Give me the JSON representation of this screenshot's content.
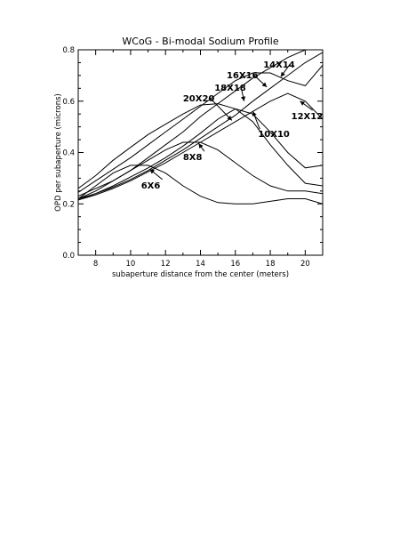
{
  "chart_data": {
    "type": "line",
    "title": "WCoG - Bi-modal Sodium Profile",
    "xlabel": "subaperture distance from the center (meters)",
    "ylabel": "OPD per subaperture (microns)",
    "xlim": [
      7,
      21
    ],
    "ylim": [
      0,
      0.8
    ],
    "x_ticks": [
      8,
      10,
      12,
      14,
      16,
      18,
      20
    ],
    "x_tick_labels": [
      "8",
      "10",
      "12",
      "14",
      "16",
      "18",
      "20"
    ],
    "y_ticks": [
      0,
      0.2,
      0.4,
      0.6,
      0.8
    ],
    "y_tick_labels": [
      "0.0",
      "0.2",
      "0.4",
      "0.6",
      "0.8"
    ],
    "grid": false,
    "series": [
      {
        "name": "6X6",
        "x": [
          7,
          8,
          9,
          10,
          11,
          12,
          13,
          14,
          15,
          16,
          17,
          18,
          19,
          20,
          21
        ],
        "y": [
          0.22,
          0.27,
          0.32,
          0.35,
          0.35,
          0.32,
          0.27,
          0.23,
          0.205,
          0.2,
          0.2,
          0.21,
          0.22,
          0.22,
          0.2
        ]
      },
      {
        "name": "8X8",
        "x": [
          7,
          8,
          9,
          10,
          11,
          12,
          13,
          14,
          15,
          16,
          17,
          18,
          19,
          20,
          21
        ],
        "y": [
          0.22,
          0.25,
          0.29,
          0.33,
          0.37,
          0.41,
          0.44,
          0.44,
          0.41,
          0.36,
          0.31,
          0.27,
          0.25,
          0.25,
          0.24
        ]
      },
      {
        "name": "10X10",
        "x": [
          7,
          8,
          9,
          10,
          11,
          12,
          13,
          14,
          15,
          16,
          17,
          18,
          19,
          20,
          21
        ],
        "y": [
          0.215,
          0.24,
          0.27,
          0.305,
          0.34,
          0.38,
          0.425,
          0.475,
          0.53,
          0.57,
          0.55,
          0.48,
          0.4,
          0.34,
          0.35
        ]
      },
      {
        "name": "12X12",
        "x": [
          7,
          8,
          9,
          10,
          11,
          12,
          13,
          14,
          15,
          16,
          17,
          18,
          19,
          20,
          21
        ],
        "y": [
          0.215,
          0.235,
          0.26,
          0.29,
          0.325,
          0.36,
          0.4,
          0.44,
          0.48,
          0.52,
          0.56,
          0.6,
          0.63,
          0.6,
          0.53
        ]
      },
      {
        "name": "14X14",
        "x": [
          7,
          8,
          9,
          10,
          11,
          12,
          13,
          14,
          15,
          16,
          17,
          18,
          19,
          20,
          21
        ],
        "y": [
          0.22,
          0.24,
          0.265,
          0.295,
          0.33,
          0.37,
          0.41,
          0.455,
          0.5,
          0.545,
          0.6,
          0.65,
          0.7,
          0.75,
          0.79
        ]
      },
      {
        "name": "16X16",
        "x": [
          7,
          8,
          9,
          10,
          11,
          12,
          13,
          14,
          15,
          16,
          17,
          18,
          19,
          20,
          21
        ],
        "y": [
          0.23,
          0.26,
          0.29,
          0.33,
          0.38,
          0.43,
          0.48,
          0.54,
          0.59,
          0.64,
          0.69,
          0.73,
          0.77,
          0.8,
          0.81
        ]
      },
      {
        "name": "18X18",
        "x": [
          7,
          8,
          9,
          10,
          11,
          12,
          13,
          14,
          15,
          16,
          17,
          18,
          19,
          20,
          21
        ],
        "y": [
          0.245,
          0.29,
          0.335,
          0.38,
          0.43,
          0.48,
          0.53,
          0.58,
          0.63,
          0.68,
          0.71,
          0.71,
          0.68,
          0.66,
          0.74
        ]
      },
      {
        "name": "20X20",
        "x": [
          7,
          8,
          9,
          10,
          11,
          12,
          13,
          14,
          15,
          16,
          17,
          18,
          19,
          20,
          21
        ],
        "y": [
          0.26,
          0.31,
          0.37,
          0.42,
          0.47,
          0.51,
          0.55,
          0.585,
          0.59,
          0.57,
          0.52,
          0.43,
          0.35,
          0.28,
          0.27
        ]
      }
    ],
    "annotations": [
      {
        "label": "14X14",
        "label_x": 17.6,
        "label_y": 0.73,
        "arrow_to_x": 18.6,
        "arrow_to_y": 0.695
      },
      {
        "label": "16X16",
        "label_x": 15.5,
        "label_y": 0.69,
        "arrow_to_x": 17.8,
        "arrow_to_y": 0.655
      },
      {
        "label": "18X18",
        "label_x": 14.8,
        "label_y": 0.64,
        "arrow_to_x": 16.5,
        "arrow_to_y": 0.6
      },
      {
        "label": "20X20",
        "label_x": 13.0,
        "label_y": 0.6,
        "arrow_to_x": 15.8,
        "arrow_to_y": 0.525
      },
      {
        "label": "12X12",
        "label_x": 19.2,
        "label_y": 0.53,
        "arrow_to_x": 19.7,
        "arrow_to_y": 0.6
      },
      {
        "label": "10X10",
        "label_x": 17.3,
        "label_y": 0.46,
        "arrow_to_x": 17.0,
        "arrow_to_y": 0.56
      },
      {
        "label": "8X8",
        "label_x": 13.0,
        "label_y": 0.37,
        "arrow_to_x": 13.9,
        "arrow_to_y": 0.435
      },
      {
        "label": "6X6",
        "label_x": 10.6,
        "label_y": 0.26,
        "arrow_to_x": 11.1,
        "arrow_to_y": 0.335
      }
    ]
  }
}
